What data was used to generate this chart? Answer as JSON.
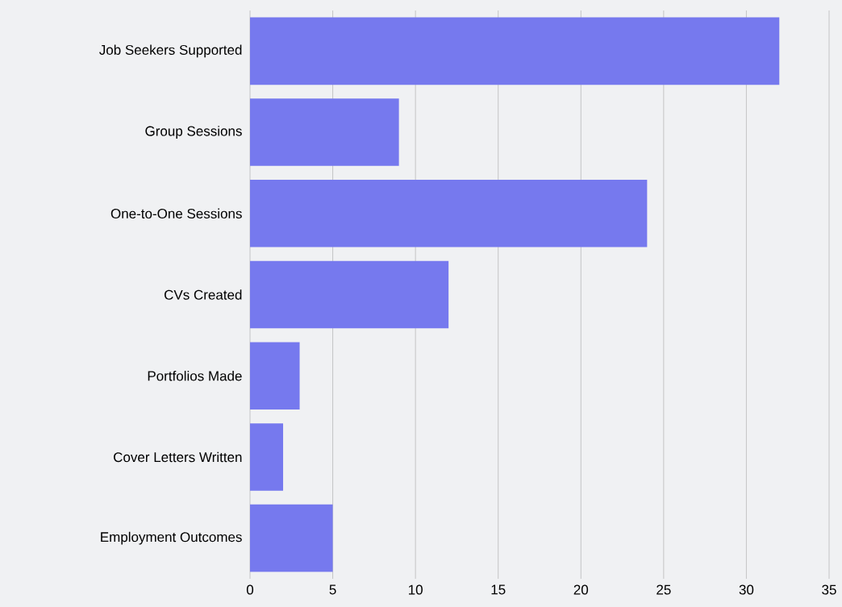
{
  "chart_data": {
    "type": "bar",
    "orientation": "horizontal",
    "categories": [
      "Job Seekers Supported",
      "Group Sessions",
      "One-to-One Sessions",
      "CVs Created",
      "Portfolios Made",
      "Cover Letters Written",
      "Employment Outcomes"
    ],
    "values": [
      32,
      9,
      24,
      12,
      3,
      2,
      5
    ],
    "color": "#7679ee",
    "xlim": [
      0,
      35
    ],
    "xticks": [
      0,
      5,
      10,
      15,
      20,
      25,
      30,
      35
    ],
    "grid": "x"
  }
}
